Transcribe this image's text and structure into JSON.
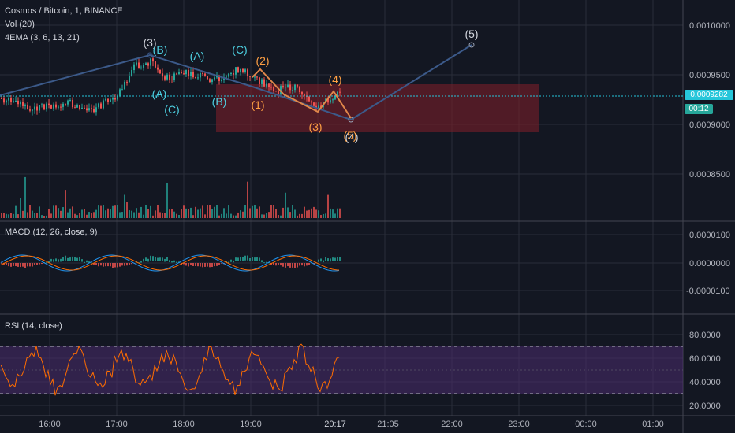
{
  "header": {
    "title": "Cosmos / Bitcoin, 1, BINANCE",
    "indicator_vol": "Vol (20)",
    "indicator_ema": "4EMA (3, 6, 13, 21)"
  },
  "price_badge": {
    "value": "0.0009282",
    "countdown": "00:12"
  },
  "macd_label": "MACD (12, 26, close, 9)",
  "rsi_label": "RSI (14, close)",
  "colors": {
    "background": "#131722",
    "grid": "#2a2e39",
    "up": "#26a69a",
    "down": "#ef5350",
    "wave_cyan": "#4dd0e1",
    "wave_orange": "#ff9f43",
    "trendline": "#3c5a8a",
    "target_box": "#7a1e2a",
    "rsi": "#ff6d00",
    "price_line": "#26c6da"
  },
  "chart_data": {
    "type": "candlestick",
    "symbol": "Cosmos / Bitcoin",
    "interval": "1",
    "exchange": "BINANCE",
    "last_price": 0.0009282,
    "x_ticks": [
      "16:00",
      "17:00",
      "18:00",
      "19:00",
      "20:17",
      "21:05",
      "22:00",
      "23:00",
      "00:00",
      "01:00"
    ],
    "price_ticks": [
      "0.0010000",
      "0.0009500",
      "0.0009000",
      "0.0008500"
    ],
    "macd_ticks": [
      "0.0000100",
      "0.0000000",
      "-0.0000100"
    ],
    "rsi_ticks": [
      "80.0000",
      "60.0000",
      "40.0000",
      "20.0000"
    ],
    "price_ylim": [
      0.00081,
      0.00101
    ],
    "rsi_ylim": [
      15,
      90
    ],
    "rsi_band": [
      30,
      70
    ],
    "wave_labels": {
      "cyan": [
        "(B)",
        "(A)",
        "(C)",
        "(A)",
        "(B)",
        "(C)"
      ],
      "orange": [
        "(2)",
        "(1)",
        "(3)",
        "(4)",
        "(5)"
      ],
      "white": [
        "(3)",
        "(4)",
        "(5)"
      ]
    }
  }
}
